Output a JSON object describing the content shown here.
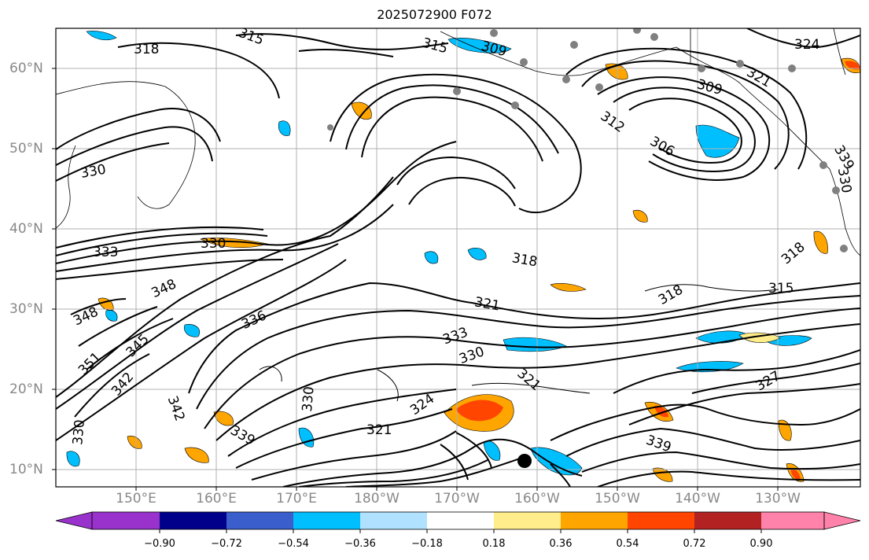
{
  "title": "2025072900 F072",
  "map": {
    "latitude_labels": [
      "60°N",
      "50°N",
      "40°N",
      "30°N",
      "20°N",
      "10°N"
    ],
    "longitude_labels": [
      "150°E",
      "160°E",
      "170°E",
      "180°W",
      "170°W",
      "160°W",
      "150°W",
      "140°W",
      "130°W"
    ],
    "contour_labels": [
      "318",
      "315",
      "315",
      "309",
      "324",
      "321",
      "309",
      "312",
      "306",
      "330",
      "330",
      "333",
      "330",
      "318",
      "318",
      "348",
      "348",
      "336",
      "321",
      "318",
      "315",
      "345",
      "333",
      "351",
      "330",
      "342",
      "321",
      "327",
      "330",
      "324",
      "342",
      "330",
      "339",
      "321",
      "339",
      "339"
    ],
    "contour_color": "#000000",
    "gridline_color": "#b0b0b0",
    "marker_color": "#808080",
    "center_marker_color": "#000000"
  },
  "colorbar": {
    "ticks": [
      "−0.90",
      "−0.72",
      "−0.54",
      "−0.36",
      "−0.18",
      "0.18",
      "0.36",
      "0.54",
      "0.72",
      "0.90"
    ],
    "colors": [
      "#9932cc",
      "#00008b",
      "#3a5fcd",
      "#00bfff",
      "#b0e2ff",
      "#ffffff",
      "#ffec8b",
      "#ffa500",
      "#ff4500",
      "#b22222",
      "#ff82ab"
    ]
  }
}
